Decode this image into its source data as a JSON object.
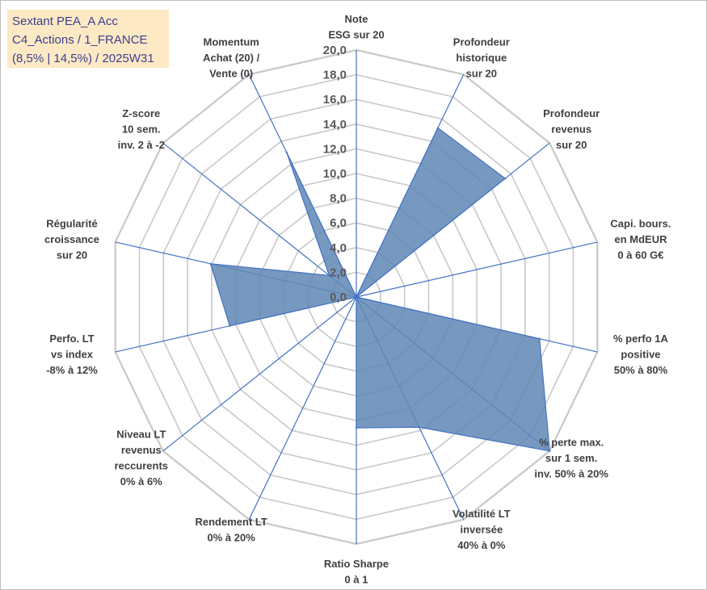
{
  "title_box": {
    "lines": [
      "Sextant PEA_A Acc",
      "C4_Actions / 1_FRANCE",
      "(8,5% | 14,5%) / 2025W31"
    ]
  },
  "chart_data": {
    "type": "radar",
    "rmin": 0,
    "rmax": 20,
    "tick_step": 2,
    "tick_labels": [
      "0,0",
      "2,0",
      "4,0",
      "6,0",
      "8,0",
      "10,0",
      "12,0",
      "14,0",
      "16,0",
      "18,0",
      "20,0"
    ],
    "grid": true,
    "axes": [
      {
        "label": [
          "Note",
          "ESG sur 20"
        ],
        "value": 0
      },
      {
        "label": [
          "Profondeur",
          "historique",
          "sur 20"
        ],
        "value": 15.2
      },
      {
        "label": [
          "Profondeur",
          "revenus",
          "sur 20"
        ],
        "value": 15.4
      },
      {
        "label": [
          "Capi. bours.",
          "en MdEUR",
          "0 à 60 G€"
        ],
        "value": 0
      },
      {
        "label": [
          "% perfo 1A",
          "positive",
          "50% à 80%"
        ],
        "value": 15.2
      },
      {
        "label": [
          "% perte max.",
          "sur 1 sem.",
          "inv. 50% à 20%"
        ],
        "value": 20
      },
      {
        "label": [
          "Volatilité LT",
          "inversée",
          "40% à 0%"
        ],
        "value": 11.7
      },
      {
        "label": [
          "Ratio Sharpe",
          "0 à 1"
        ],
        "value": 10.6
      },
      {
        "label": [
          "Rendement LT",
          "0% à 20%"
        ],
        "value": 0
      },
      {
        "label": [
          "Niveau LT",
          "revenus",
          "reccurents",
          "0% à 6%"
        ],
        "value": 0
      },
      {
        "label": [
          "Perfo. LT",
          "vs index",
          "-8% à 12%"
        ],
        "value": 10.5
      },
      {
        "label": [
          "Régularité",
          "croissance",
          "sur 20"
        ],
        "value": 12.1
      },
      {
        "label": [
          "Z-score",
          "10 sem.",
          "inv. 2 à -2"
        ],
        "value": 2.8
      },
      {
        "label": [
          "Momentum",
          "Achat (20) /",
          "Vente (0)"
        ],
        "value": 13.0
      }
    ],
    "series": [
      {
        "values": [
          0,
          15.2,
          15.4,
          0,
          15.2,
          20,
          11.7,
          10.6,
          0,
          0,
          10.5,
          12.1,
          2.8,
          13.0
        ]
      }
    ],
    "colors": {
      "fill": "#5f87b5",
      "stroke": "#4472c4",
      "grid": "#c8c8c8",
      "axis": "#4472c4"
    }
  }
}
